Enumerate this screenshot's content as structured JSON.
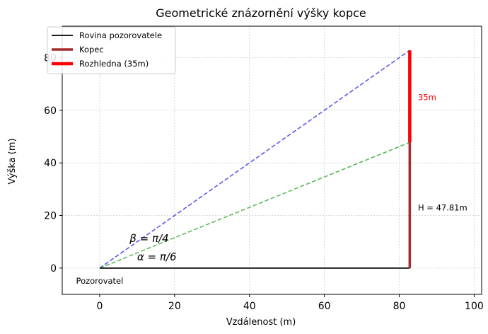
{
  "chart_data": {
    "type": "line",
    "title": "Geometrické znázornění výšky kopce",
    "xlabel": "Vzdálenost (m)",
    "ylabel": "Výška (m)",
    "xlim": [
      -10,
      102
    ],
    "ylim": [
      -10,
      92
    ],
    "xticks": [
      0,
      20,
      40,
      60,
      80,
      100
    ],
    "yticks": [
      0,
      20,
      40,
      60,
      80
    ],
    "grid": true,
    "legend_position": "top-left",
    "series": [
      {
        "name": "Rovina pozorovatele",
        "color": "#000000",
        "style": "solid",
        "x": [
          0,
          82.8
        ],
        "y": [
          0,
          0
        ]
      },
      {
        "name": "Kopec",
        "color": "#a52a2a",
        "style": "solid",
        "x": [
          82.8,
          82.8
        ],
        "y": [
          0,
          47.81
        ]
      },
      {
        "name": "Rozhledna (35m)",
        "color": "#ff0000",
        "style": "solid",
        "x": [
          82.8,
          82.8
        ],
        "y": [
          47.81,
          82.81
        ]
      },
      {
        "name": "",
        "color": "#5c5ce6",
        "style": "dashed",
        "x": [
          0,
          82.8
        ],
        "y": [
          0,
          82.81
        ]
      },
      {
        "name": "",
        "color": "#5cb85c",
        "style": "dashed",
        "x": [
          0,
          82.8
        ],
        "y": [
          0,
          47.81
        ]
      }
    ],
    "annotations": [
      {
        "text": "Pozorovatel",
        "x": 0,
        "y": -3,
        "color": "#000000"
      },
      {
        "text": "35m",
        "x": 85,
        "y": 65,
        "color": "#ff0000"
      },
      {
        "text": "H = 47.81m",
        "x": 85,
        "y": 23,
        "color": "#000000"
      },
      {
        "text": "β = π/4",
        "x": 8,
        "y": 11,
        "color": "#000000"
      },
      {
        "text": "α = π/6",
        "x": 10,
        "y": 4,
        "color": "#000000"
      }
    ]
  }
}
